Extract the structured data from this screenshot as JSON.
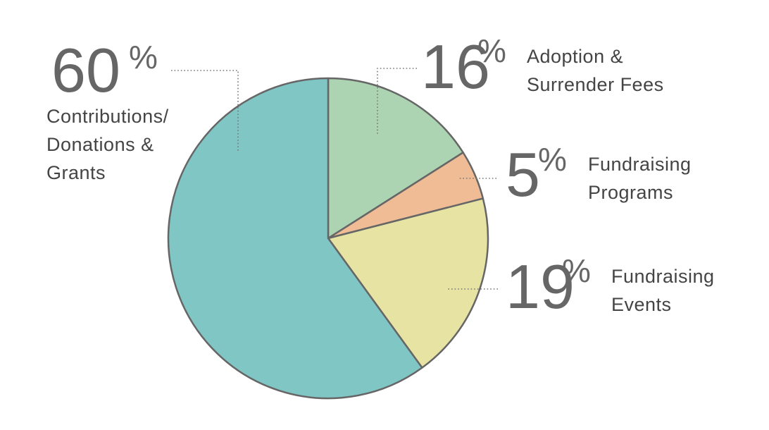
{
  "chart_data": {
    "type": "pie",
    "categories": [
      "Adoption &\nSurrender Fees",
      "Fundraising\nPrograms",
      "Fundraising\nEvents",
      "Contributions/\nDonations &\nGrants"
    ],
    "values": [
      16,
      5,
      19,
      60
    ],
    "unit": "%",
    "colors": [
      "#acd4b2",
      "#efbc96",
      "#e7e3a3",
      "#80c6c5"
    ]
  }
}
